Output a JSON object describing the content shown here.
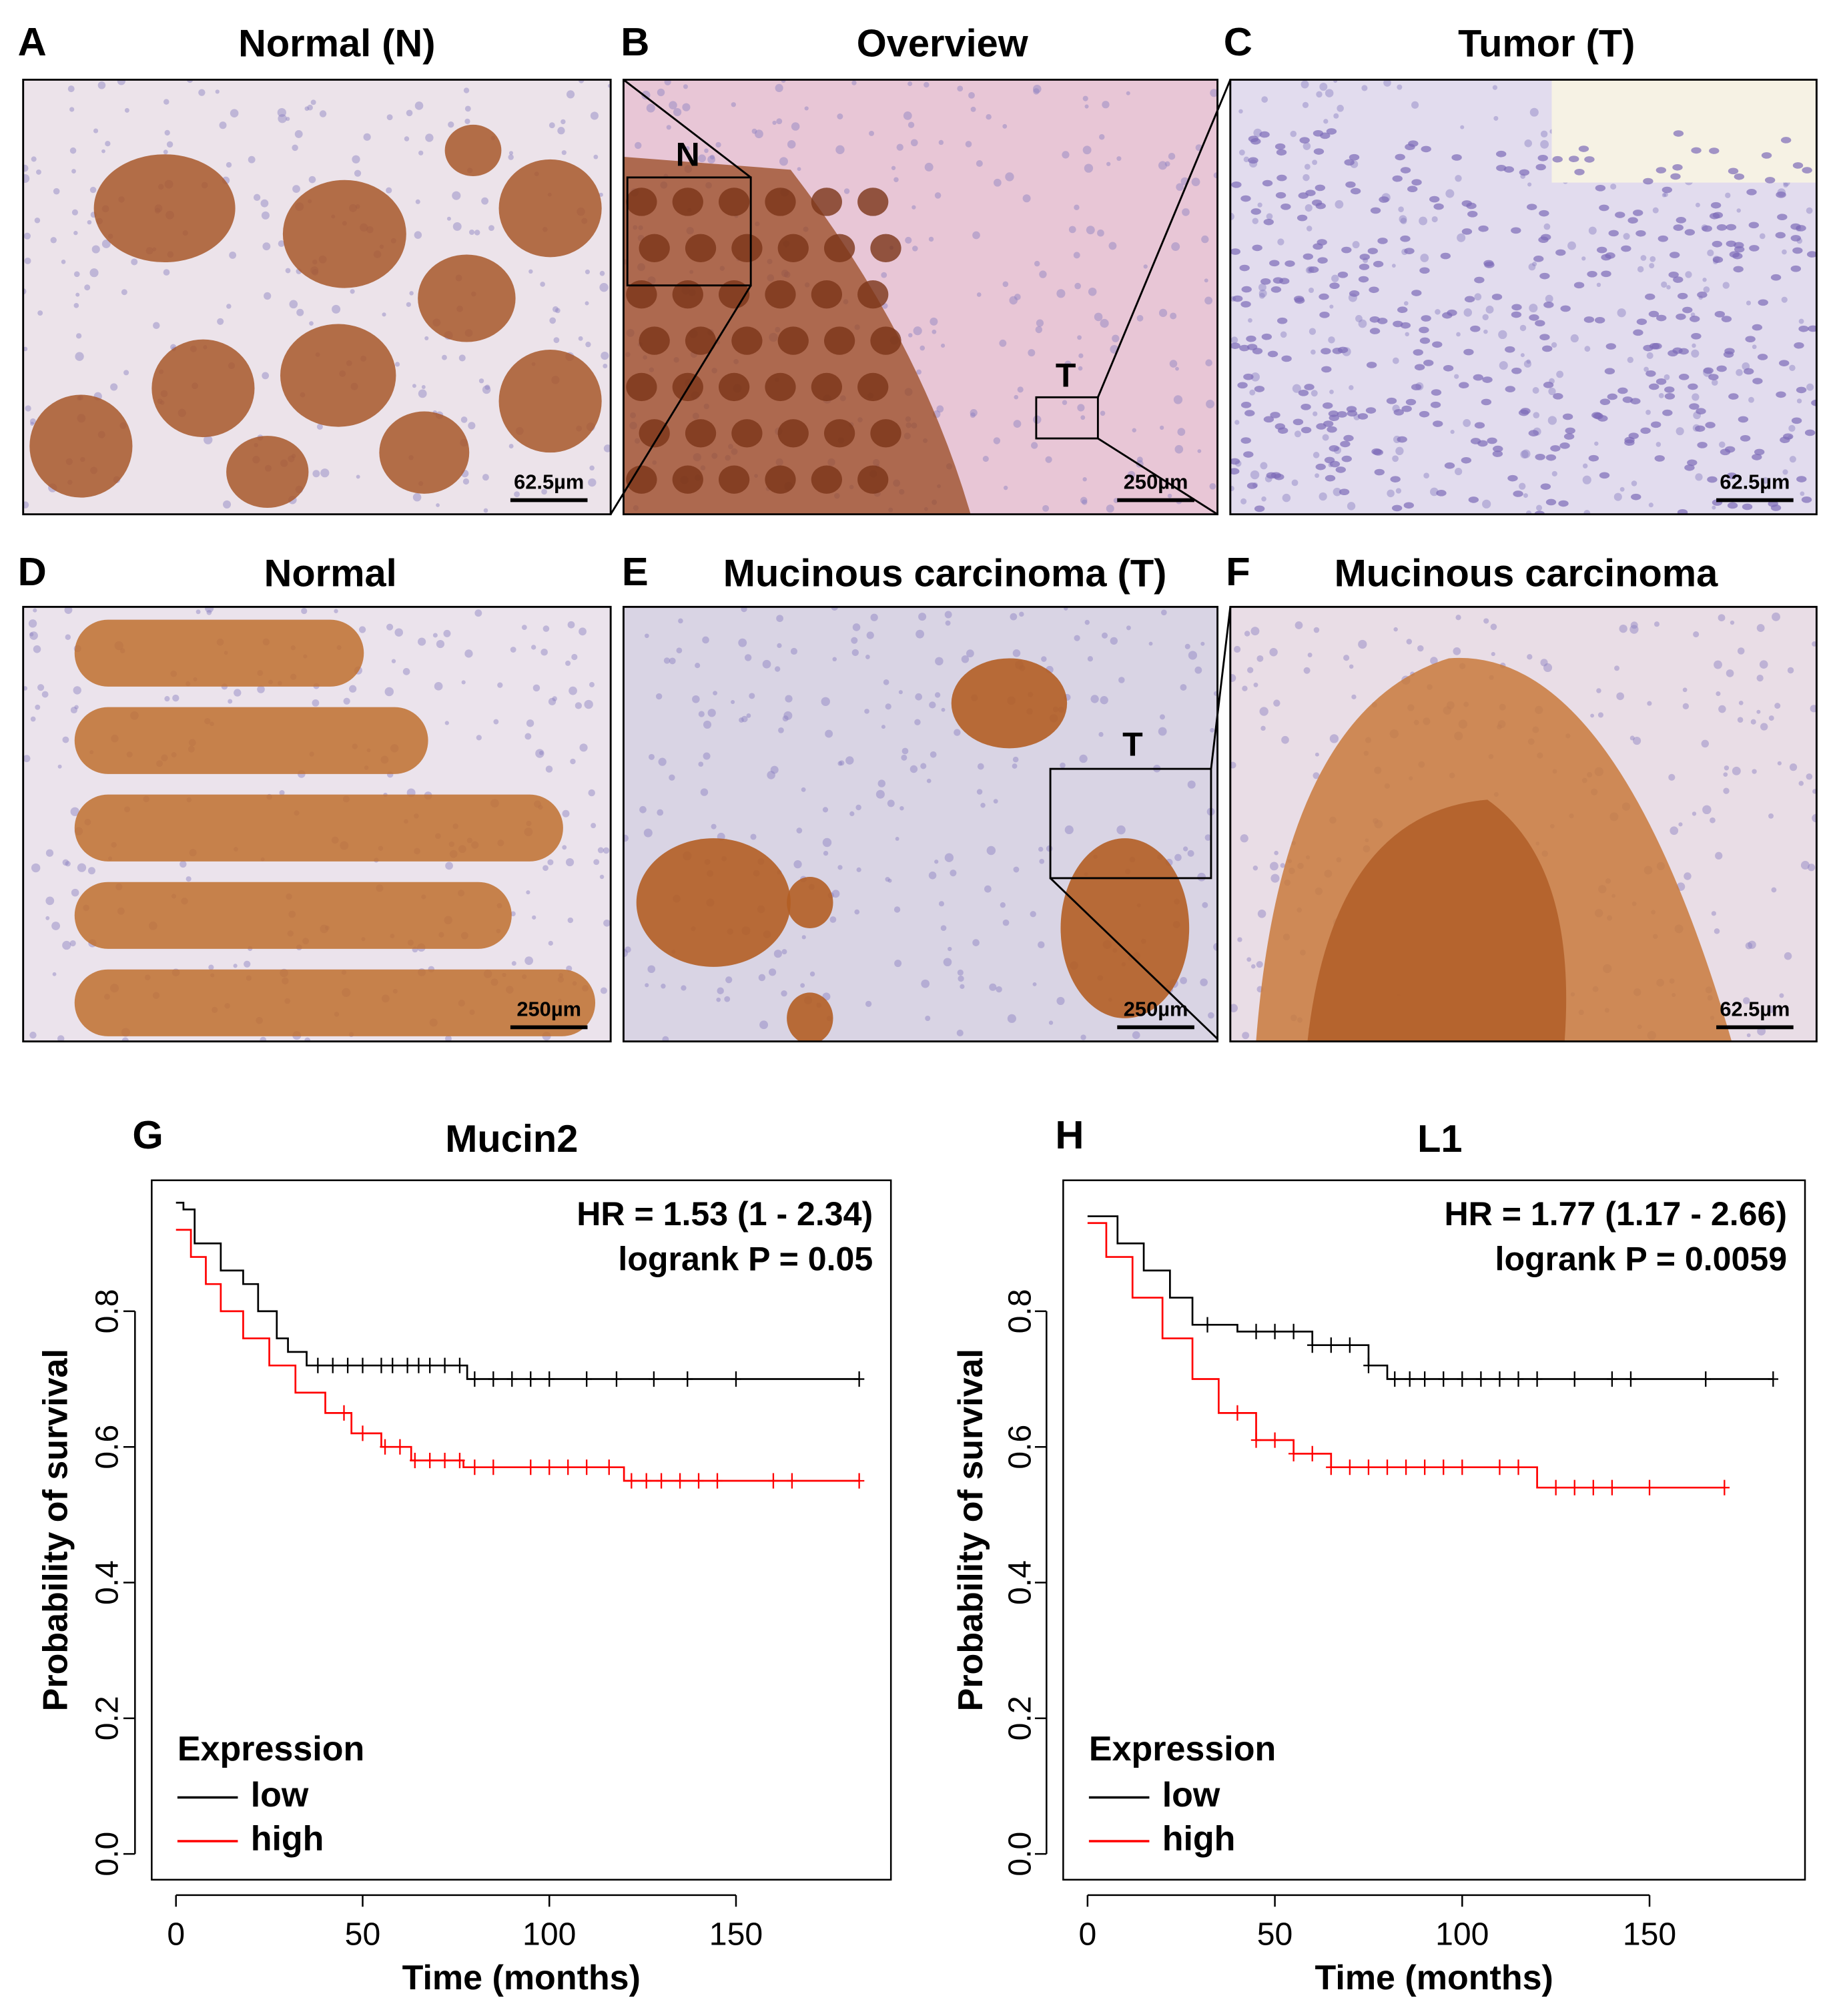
{
  "panels": [
    {
      "letter": "A",
      "title": "Normal (N)",
      "scale_bar": "62.5µm"
    },
    {
      "letter": "B",
      "title": "Overview",
      "scale_bar": "250µm",
      "inset_labels": [
        "N",
        "T"
      ]
    },
    {
      "letter": "C",
      "title": "Tumor (T)",
      "scale_bar": "62.5µm"
    },
    {
      "letter": "D",
      "title": "Normal",
      "scale_bar": "250µm"
    },
    {
      "letter": "E",
      "title": "Mucinous carcinoma (T)",
      "scale_bar": "250µm",
      "inset_labels": [
        "T"
      ]
    },
    {
      "letter": "F",
      "title": "Mucinous carcinoma",
      "scale_bar": "62.5µm"
    }
  ],
  "chart_data": [
    {
      "type": "step",
      "label": "G",
      "title": "Mucin2",
      "x_label": "Time (months)",
      "y_label": "Probability of survival",
      "annotations": [
        "HR = 1.53 (1 - 2.34)",
        "logrank P = 0.05"
      ],
      "legend_title": "Expression",
      "xlim": [
        -6.5,
        191.5
      ],
      "ylim": [
        -0.038,
        0.993
      ],
      "xticks": [
        0,
        50,
        100,
        150
      ],
      "yticks": [
        {
          "value": 0,
          "label": "0.0"
        },
        0.2,
        0.4,
        0.6,
        0.8
      ],
      "series": [
        {
          "name": "low",
          "color": "#000000",
          "x": [
            0,
            2,
            5,
            12,
            18,
            22,
            27,
            30,
            35,
            78,
            183
          ],
          "values": [
            0.96,
            0.95,
            0.9,
            0.86,
            0.84,
            0.8,
            0.76,
            0.74,
            0.72,
            0.7,
            0.7
          ],
          "censor_times": [
            38,
            42,
            46,
            50,
            55,
            58,
            62,
            65,
            68,
            72,
            76,
            80,
            85,
            90,
            95,
            100,
            110,
            118,
            128,
            137,
            150,
            183
          ]
        },
        {
          "name": "high",
          "color": "#ff0000",
          "x": [
            0,
            4,
            8,
            12,
            18,
            25,
            32,
            40,
            47,
            55,
            63,
            77,
            120,
            183
          ],
          "values": [
            0.92,
            0.88,
            0.84,
            0.8,
            0.76,
            0.72,
            0.68,
            0.65,
            0.62,
            0.6,
            0.58,
            0.57,
            0.55,
            0.55
          ],
          "censor_times": [
            45,
            50,
            56,
            60,
            64,
            68,
            72,
            76,
            80,
            85,
            95,
            100,
            105,
            110,
            116,
            122,
            126,
            130,
            135,
            140,
            145,
            160,
            165,
            183
          ]
        }
      ]
    },
    {
      "type": "step",
      "label": "H",
      "title": "L1",
      "x_label": "Time (months)",
      "y_label": "Probability of survival",
      "annotations": [
        "HR = 1.77 (1.17 - 2.66)",
        "logrank P = 0.0059"
      ],
      "legend_title": "Expression",
      "xlim": [
        -6.5,
        191.5
      ],
      "ylim": [
        -0.038,
        0.993
      ],
      "xticks": [
        0,
        50,
        100,
        150
      ],
      "yticks": [
        {
          "value": 0,
          "label": "0.0"
        },
        0.2,
        0.4,
        0.6,
        0.8
      ],
      "series": [
        {
          "name": "low",
          "color": "#000000",
          "x": [
            0,
            8,
            15,
            22,
            28,
            40,
            60,
            75,
            80,
            183
          ],
          "values": [
            0.94,
            0.9,
            0.86,
            0.82,
            0.78,
            0.77,
            0.75,
            0.72,
            0.7,
            0.7
          ],
          "censor_times": [
            32,
            45,
            50,
            55,
            60,
            65,
            70,
            75,
            82,
            86,
            90,
            95,
            100,
            105,
            110,
            115,
            120,
            130,
            140,
            145,
            165,
            183
          ]
        },
        {
          "name": "high",
          "color": "#ff0000",
          "x": [
            0,
            5,
            12,
            20,
            28,
            35,
            45,
            55,
            65,
            120,
            170
          ],
          "values": [
            0.93,
            0.88,
            0.82,
            0.76,
            0.7,
            0.65,
            0.61,
            0.59,
            0.57,
            0.54,
            0.54
          ],
          "censor_times": [
            40,
            45,
            50,
            55,
            60,
            65,
            70,
            75,
            80,
            85,
            90,
            95,
            100,
            110,
            115,
            125,
            130,
            135,
            140,
            150,
            170
          ]
        }
      ]
    }
  ]
}
